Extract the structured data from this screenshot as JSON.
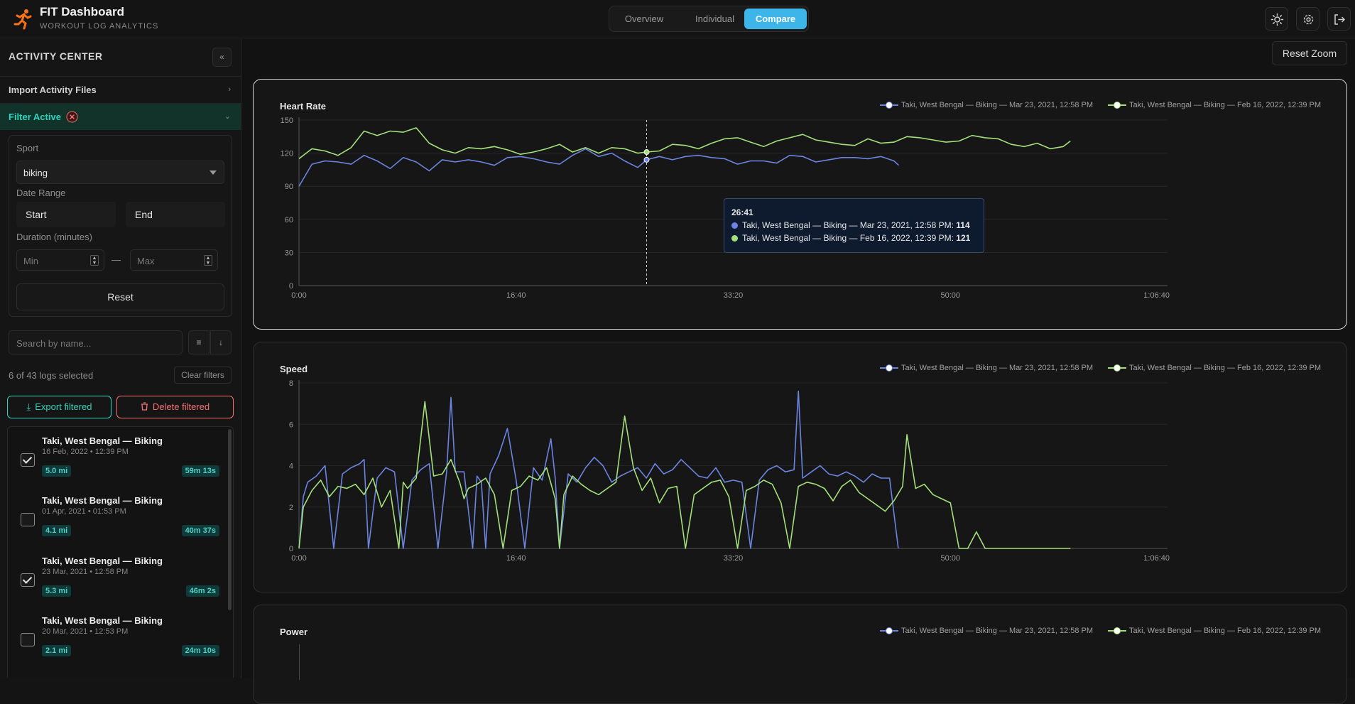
{
  "header": {
    "title": "FIT Dashboard",
    "subtitle": "WORKOUT LOG ANALYTICS",
    "tabs": [
      {
        "label": "Overview",
        "active": false
      },
      {
        "label": "Individual",
        "active": false
      },
      {
        "label": "Compare",
        "active": true
      }
    ],
    "icons": [
      "sun-icon",
      "gear-icon",
      "logout-icon"
    ]
  },
  "sidebar": {
    "title": "ACTIVITY CENTER",
    "import_label": "Import Activity Files",
    "filter_label": "Filter Active",
    "filters": {
      "sport_label": "Sport",
      "sport_value": "biking",
      "date_label": "Date Range",
      "start_label": "Start",
      "end_label": "End",
      "duration_label": "Duration (minutes)",
      "min_placeholder": "Min",
      "dash": "—",
      "max_placeholder": "Max",
      "reset_label": "Reset"
    },
    "search_placeholder": "Search by name...",
    "count_text": "6 of 43 logs selected",
    "clear_label": "Clear filters",
    "export_label": "Export filtered",
    "delete_label": "Delete filtered",
    "logs": [
      {
        "title": "Taki, West Bengal — Biking",
        "date": "16 Feb, 2022 • 12:39 PM",
        "distance": "5.0 mi",
        "duration": "59m 13s",
        "checked": true
      },
      {
        "title": "Taki, West Bengal — Biking",
        "date": "01 Apr, 2021 • 01:53 PM",
        "distance": "4.1 mi",
        "duration": "40m 37s",
        "checked": false
      },
      {
        "title": "Taki, West Bengal — Biking",
        "date": "23 Mar, 2021 • 12:58 PM",
        "distance": "5.3 mi",
        "duration": "46m 2s",
        "checked": true
      },
      {
        "title": "Taki, West Bengal — Biking",
        "date": "20 Mar, 2021 • 12:53 PM",
        "distance": "2.1 mi",
        "duration": "24m 10s",
        "checked": false
      }
    ]
  },
  "main": {
    "reset_zoom_label": "Reset Zoom",
    "tooltip": {
      "time": "26:41",
      "rows": [
        {
          "label": "Taki, West Bengal — Biking — Mar 23, 2021, 12:58 PM:",
          "value": "114",
          "color": "#6b84e0"
        },
        {
          "label": "Taki, West Bengal — Biking — Feb 16, 2022, 12:39 PM:",
          "value": "121",
          "color": "#a3e07a"
        }
      ]
    }
  },
  "colors": {
    "series_a": "#6b84e0",
    "series_b": "#a3e07a",
    "accent": "#3db5e8",
    "teal": "#2dd4bf",
    "danger": "#f87171"
  },
  "chart_data": [
    {
      "type": "line",
      "title": "Heart Rate",
      "x_unit": "seconds (elapsed)",
      "xticks": [
        "0:00",
        "16:40",
        "33:20",
        "50:00",
        "1:06:40"
      ],
      "xlim": [
        0,
        4000
      ],
      "ylim": [
        0,
        150
      ],
      "yticks": [
        0,
        30,
        60,
        90,
        120,
        150
      ],
      "grid": true,
      "legend_position": "top-right",
      "cursor_x": 1601,
      "series": [
        {
          "name": "Taki, West Bengal — Biking — Mar 23, 2021, 12:58 PM",
          "color": "#6b84e0",
          "x": [
            0,
            60,
            120,
            180,
            240,
            300,
            360,
            420,
            480,
            540,
            600,
            660,
            720,
            780,
            840,
            900,
            960,
            1020,
            1080,
            1140,
            1200,
            1260,
            1320,
            1380,
            1440,
            1500,
            1560,
            1601,
            1660,
            1720,
            1780,
            1840,
            1900,
            1960,
            2020,
            2080,
            2140,
            2200,
            2260,
            2320,
            2380,
            2440,
            2500,
            2560,
            2620,
            2680,
            2740,
            2762
          ],
          "y": [
            90,
            110,
            113,
            112,
            110,
            118,
            113,
            106,
            116,
            112,
            104,
            114,
            112,
            114,
            112,
            109,
            116,
            117,
            115,
            112,
            110,
            118,
            124,
            117,
            120,
            113,
            107,
            114,
            117,
            114,
            117,
            118,
            116,
            115,
            110,
            113,
            113,
            111,
            118,
            117,
            112,
            114,
            116,
            116,
            115,
            117,
            113,
            109
          ]
        },
        {
          "name": "Taki, West Bengal — Biking — Feb 16, 2022, 12:39 PM",
          "color": "#a3e07a",
          "x": [
            0,
            60,
            120,
            180,
            240,
            300,
            360,
            420,
            480,
            540,
            600,
            660,
            720,
            780,
            840,
            900,
            960,
            1020,
            1080,
            1140,
            1200,
            1260,
            1320,
            1380,
            1440,
            1500,
            1560,
            1601,
            1660,
            1720,
            1780,
            1840,
            1900,
            1960,
            2020,
            2080,
            2140,
            2200,
            2260,
            2320,
            2380,
            2440,
            2500,
            2560,
            2620,
            2680,
            2740,
            2800,
            2860,
            2920,
            2980,
            3040,
            3100,
            3160,
            3220,
            3280,
            3340,
            3400,
            3460,
            3520,
            3553
          ],
          "y": [
            115,
            124,
            122,
            118,
            125,
            140,
            136,
            140,
            139,
            143,
            129,
            123,
            120,
            125,
            124,
            126,
            123,
            119,
            121,
            124,
            128,
            121,
            125,
            120,
            125,
            124,
            120,
            121,
            122,
            128,
            127,
            124,
            129,
            133,
            134,
            130,
            126,
            131,
            134,
            137,
            132,
            130,
            128,
            127,
            133,
            129,
            130,
            135,
            134,
            132,
            130,
            131,
            136,
            134,
            133,
            128,
            126,
            129,
            124,
            126,
            131
          ]
        }
      ]
    },
    {
      "type": "line",
      "title": "Speed",
      "x_unit": "seconds (elapsed)",
      "xticks": [
        "0:00",
        "16:40",
        "33:20",
        "50:00",
        "1:06:40"
      ],
      "xlim": [
        0,
        4000
      ],
      "ylim": [
        0,
        8
      ],
      "yticks": [
        0,
        2,
        4,
        6,
        8
      ],
      "grid": true,
      "legend_position": "top-right",
      "series": [
        {
          "name": "Taki, West Bengal — Biking — Mar 23, 2021, 12:58 PM",
          "color": "#6b84e0",
          "x": [
            0,
            20,
            40,
            80,
            120,
            160,
            200,
            240,
            280,
            300,
            320,
            360,
            400,
            440,
            480,
            520,
            560,
            600,
            640,
            680,
            700,
            720,
            760,
            800,
            820,
            840,
            860,
            880,
            920,
            960,
            1000,
            1040,
            1080,
            1120,
            1160,
            1180,
            1200,
            1240,
            1280,
            1320,
            1360,
            1400,
            1440,
            1480,
            1520,
            1560,
            1600,
            1640,
            1680,
            1720,
            1760,
            1800,
            1840,
            1880,
            1920,
            1960,
            2000,
            2040,
            2080,
            2120,
            2160,
            2200,
            2240,
            2280,
            2300,
            2320,
            2360,
            2400,
            2440,
            2480,
            2520,
            2560,
            2600,
            2640,
            2680,
            2720,
            2760
          ],
          "y": [
            0,
            2.5,
            3.2,
            3.5,
            4.0,
            0,
            3.6,
            3.9,
            4.1,
            4.3,
            0,
            3.4,
            3.9,
            3.7,
            0,
            3.3,
            3.8,
            4.1,
            0,
            3.7,
            7.3,
            3.7,
            3.7,
            0,
            3.5,
            3.2,
            0,
            3.6,
            4.5,
            5.8,
            3.3,
            0,
            3.9,
            3.3,
            5.3,
            3.4,
            0,
            3.6,
            3.2,
            3.9,
            4.4,
            4.0,
            3.2,
            3.5,
            3.7,
            3.9,
            3.4,
            4.1,
            3.6,
            3.8,
            4.3,
            3.9,
            3.5,
            3.4,
            3.9,
            3.2,
            3.3,
            3.2,
            0,
            3.3,
            3.8,
            4.0,
            3.7,
            3.8,
            7.6,
            3.4,
            3.7,
            4.0,
            3.6,
            3.5,
            3.7,
            3.5,
            3.2,
            3.6,
            3.4,
            3.4,
            0
          ]
        },
        {
          "name": "Taki, West Bengal — Biking — Feb 16, 2022, 12:39 PM",
          "color": "#a3e07a",
          "x": [
            0,
            20,
            60,
            100,
            140,
            180,
            220,
            260,
            300,
            340,
            380,
            420,
            460,
            480,
            500,
            540,
            580,
            620,
            660,
            700,
            740,
            760,
            780,
            820,
            860,
            900,
            940,
            980,
            1020,
            1060,
            1100,
            1140,
            1180,
            1200,
            1220,
            1260,
            1300,
            1340,
            1380,
            1420,
            1460,
            1500,
            1540,
            1580,
            1620,
            1660,
            1700,
            1740,
            1780,
            1820,
            1860,
            1900,
            1940,
            1980,
            2020,
            2060,
            2100,
            2140,
            2180,
            2220,
            2260,
            2300,
            2340,
            2380,
            2420,
            2460,
            2500,
            2540,
            2580,
            2620,
            2660,
            2700,
            2740,
            2780,
            2800,
            2840,
            2880,
            2920,
            2960,
            3000,
            3040,
            3080,
            3120,
            3160,
            3200,
            3240,
            3280,
            3320,
            3360,
            3400,
            3440,
            3480,
            3520,
            3553
          ],
          "y": [
            0,
            2.0,
            2.8,
            3.3,
            2.5,
            3.0,
            2.9,
            3.1,
            2.6,
            3.4,
            2.0,
            2.8,
            0,
            3.2,
            2.9,
            3.4,
            7.1,
            3.5,
            3.6,
            4.3,
            3.2,
            2.4,
            2.9,
            3.1,
            3.4,
            2.6,
            0,
            2.8,
            3.0,
            3.5,
            3.3,
            3.9,
            2.4,
            0,
            2.6,
            3.5,
            3.1,
            2.8,
            2.6,
            2.9,
            3.2,
            6.4,
            3.9,
            2.8,
            3.4,
            2.2,
            2.9,
            3.0,
            0,
            2.6,
            2.9,
            3.2,
            3.3,
            2.5,
            0,
            2.8,
            3.0,
            3.3,
            3.1,
            2.2,
            0,
            3.0,
            3.2,
            3.1,
            2.9,
            2.3,
            3.0,
            3.3,
            2.7,
            2.4,
            2.1,
            1.8,
            2.3,
            3.0,
            5.5,
            2.9,
            3.1,
            2.6,
            2.4,
            2.2,
            0,
            0,
            0.8,
            0,
            0,
            0,
            0,
            0,
            0,
            0,
            0,
            0,
            0,
            0
          ]
        }
      ]
    },
    {
      "type": "line",
      "title": "Power",
      "legend_position": "top-right",
      "series": [
        {
          "name": "Taki, West Bengal — Biking — Mar 23, 2021, 12:58 PM",
          "color": "#6b84e0"
        },
        {
          "name": "Taki, West Bengal — Biking — Feb 16, 2022, 12:39 PM",
          "color": "#a3e07a"
        }
      ]
    }
  ]
}
